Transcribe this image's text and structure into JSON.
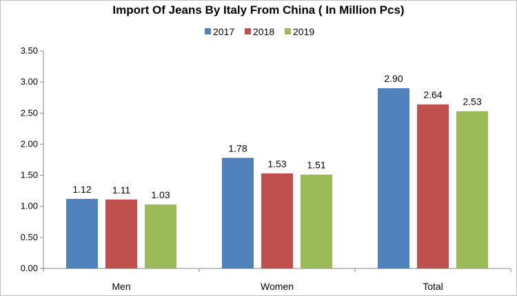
{
  "chart_data": {
    "type": "bar",
    "title": "Import Of Jeans By Italy From China ( In Million Pcs)",
    "categories": [
      "Men",
      "Women",
      "Total"
    ],
    "series": [
      {
        "name": "2017",
        "color": "#4f81bd",
        "values": [
          1.12,
          1.78,
          2.9
        ],
        "labels": [
          "1.12",
          "1.78",
          "2.90"
        ]
      },
      {
        "name": "2018",
        "color": "#c0504d",
        "values": [
          1.11,
          1.53,
          2.64
        ],
        "labels": [
          "1.11",
          "1.53",
          "2.64"
        ]
      },
      {
        "name": "2019",
        "color": "#9bbb59",
        "values": [
          1.03,
          1.51,
          2.53
        ],
        "labels": [
          "1.03",
          "1.51",
          "2.53"
        ]
      }
    ],
    "ylim": [
      0,
      3.5
    ],
    "yticks": [
      "0.00",
      "0.50",
      "1.00",
      "1.50",
      "2.00",
      "2.50",
      "3.00",
      "3.50"
    ],
    "legend_position": "top-center",
    "grid": false
  }
}
